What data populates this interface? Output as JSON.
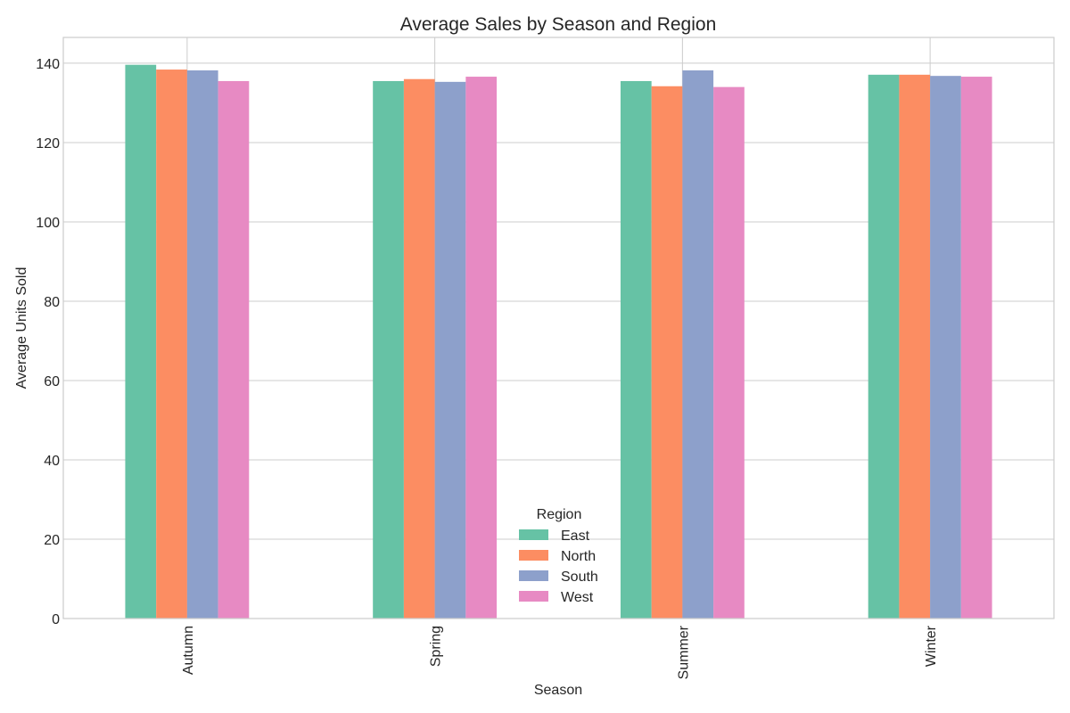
{
  "chart_data": {
    "type": "bar",
    "title": "Average Sales by Season and Region",
    "xlabel": "Season",
    "ylabel": "Average Units Sold",
    "categories": [
      "Autumn",
      "Spring",
      "Summer",
      "Winter"
    ],
    "series": [
      {
        "name": "East",
        "color": "#66c2a5",
        "values": [
          139.6,
          135.5,
          135.5,
          137.1
        ]
      },
      {
        "name": "North",
        "color": "#fc8d62",
        "values": [
          138.4,
          136.0,
          134.2,
          137.1
        ]
      },
      {
        "name": "South",
        "color": "#8da0cb",
        "values": [
          138.2,
          135.3,
          138.2,
          136.8
        ]
      },
      {
        "name": "West",
        "color": "#e78ac3",
        "values": [
          135.5,
          136.6,
          134.0,
          136.6
        ]
      }
    ],
    "ylim": [
      0,
      146.5
    ],
    "yticks": [
      0,
      20,
      40,
      60,
      80,
      100,
      120,
      140
    ],
    "grid": true,
    "legend": {
      "title": "Region",
      "placement": "lower-center"
    }
  }
}
